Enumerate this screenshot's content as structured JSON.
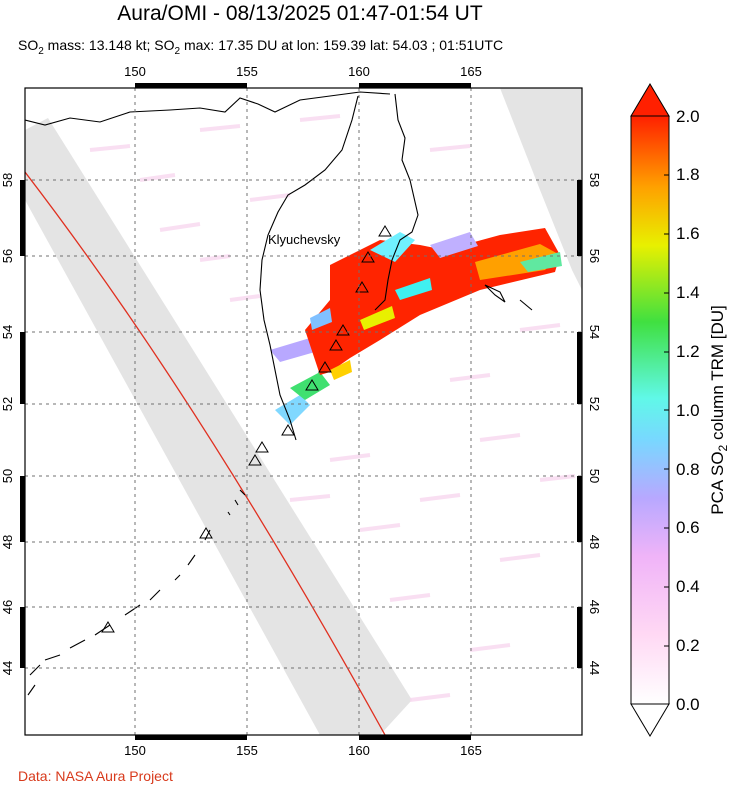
{
  "title": "Aura/OMI - 08/13/2025 01:47-01:54 UT",
  "subtitle": {
    "mass_prefix": "SO",
    "mass_sub": "2",
    "mass_text": " mass: 13.148 kt; SO",
    "max_sub": "2",
    "max_text": " max: 17.35 DU at lon: 159.39 lat: 54.03 ; 01:51UTC"
  },
  "volcano_label": "Klyuchevsky",
  "credit": "Data: NASA Aura Project",
  "map": {
    "lon_ticks": [
      "150",
      "155",
      "160",
      "165"
    ],
    "lat_ticks": [
      "44",
      "46",
      "48",
      "50",
      "52",
      "54",
      "56",
      "58"
    ]
  },
  "colorbar": {
    "title_pre": "PCA SO",
    "title_sub": "2",
    "title_post": " column TRM [DU]",
    "ticks": [
      "0.0",
      "0.2",
      "0.4",
      "0.6",
      "0.8",
      "1.0",
      "1.2",
      "1.4",
      "1.6",
      "1.8",
      "2.0"
    ],
    "colors": [
      "#ffffff",
      "#ffc8f0",
      "#c8b4ff",
      "#6ef0ff",
      "#38e038",
      "#ffff00",
      "#ff9a00",
      "#ff2000"
    ]
  }
}
